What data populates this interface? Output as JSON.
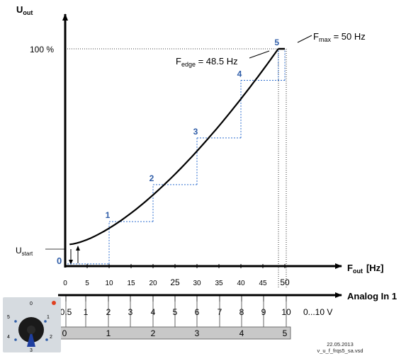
{
  "axes": {
    "y_label": "U",
    "y_label_sub": "out",
    "x_label": "F",
    "x_label_sub": "out",
    "x_unit": "[Hz]",
    "analog_label": "Analog In 1",
    "y_100": "100 %",
    "ustart": "U",
    "ustart_sub": "start",
    "origin": "0"
  },
  "freq_ticks": [
    "0",
    "5",
    "10",
    "15",
    "20",
    "25",
    "30",
    "35",
    "40",
    "45",
    "50"
  ],
  "volt_ticks": [
    "0.5",
    "1",
    "2",
    "3",
    "4",
    "5",
    "6",
    "7",
    "8",
    "9",
    "10",
    "0...10 V"
  ],
  "steps_bar": [
    "0",
    "1",
    "2",
    "3",
    "4",
    "5"
  ],
  "point_labels": [
    "1",
    "2",
    "3",
    "4",
    "5"
  ],
  "annotations": {
    "fmax": "F",
    "fmax_sub": "max",
    "fmax_value": " = 50 Hz",
    "fedge": "F",
    "fedge_sub": "edge",
    "fedge_value": " = 48.5 Hz"
  },
  "stamp": {
    "date": "22.05.2013",
    "file": "v_u_f_frqs5_sa.vsd"
  },
  "knob": {
    "labels": [
      "0",
      "1",
      "2",
      "3",
      "4",
      "5"
    ]
  },
  "colors": {
    "curve": "#000000",
    "steps": "#2f6fd0",
    "point_labels": "#2f5da8",
    "bar_fill": "#c8c8c8",
    "knob_body": "#1a1a1a",
    "knob_pointer": "#1f3fa0",
    "led": "#e04020"
  },
  "chart_data": {
    "type": "line",
    "xlabel": "F out [Hz]",
    "ylabel": "U out",
    "xlim": [
      0,
      50
    ],
    "curve": {
      "x_start": 1,
      "y_start_fraction": 0.1,
      "x_end": 48.5,
      "y_end_fraction": 1.0
    },
    "steps": [
      {
        "label": "1",
        "x": 10,
        "y": 0.205
      },
      {
        "label": "2",
        "x": 20,
        "y": 0.375
      },
      {
        "label": "3",
        "x": 30,
        "y": 0.59
      },
      {
        "label": "4",
        "x": 40,
        "y": 0.855
      },
      {
        "label": "5",
        "x": 48.5,
        "y": 1.0
      }
    ],
    "fmax": 50,
    "fedge": 48.5
  }
}
